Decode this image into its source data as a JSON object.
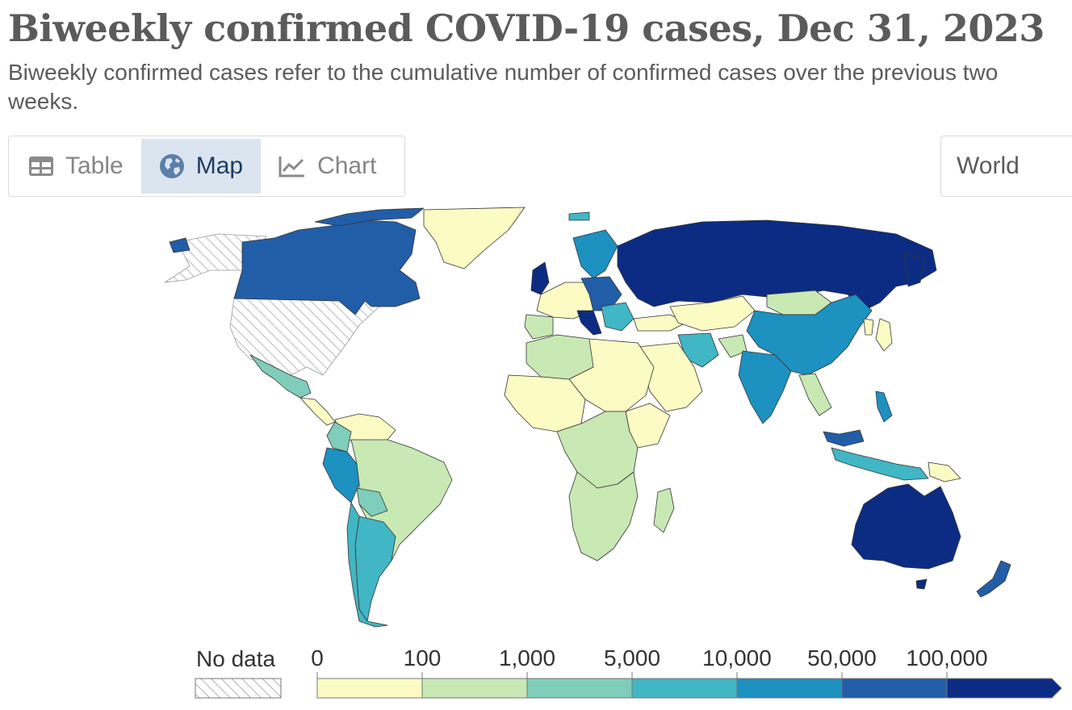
{
  "header": {
    "title": "Biweekly confirmed COVID-19 cases, Dec 31, 2023",
    "subtitle": "Biweekly confirmed cases refer to the cumulative number of confirmed cases over the previous two weeks."
  },
  "tabs": [
    {
      "label": "Table",
      "icon": "table-icon",
      "active": false
    },
    {
      "label": "Map",
      "icon": "globe-icon",
      "active": true
    },
    {
      "label": "Chart",
      "icon": "line-chart-icon",
      "active": false
    }
  ],
  "region_selector": {
    "value": "World"
  },
  "legend": {
    "no_data_label": "No data",
    "bins": [
      {
        "from": "0",
        "to": "100",
        "color": "#fdfbc4"
      },
      {
        "from": "100",
        "to": "1,000",
        "color": "#c8e8b4"
      },
      {
        "from": "1,000",
        "to": "5,000",
        "color": "#7fcdbb"
      },
      {
        "from": "5,000",
        "to": "10,000",
        "color": "#41b6c4"
      },
      {
        "from": "10,000",
        "to": "50,000",
        "color": "#1d91c0"
      },
      {
        "from": "50,000",
        "to": "100,000",
        "color": "#225ea8"
      },
      {
        "from": "100,000",
        "to": "",
        "color": "#0c2c84"
      }
    ],
    "tick_labels": [
      "0",
      "100",
      "1,000",
      "5,000",
      "10,000",
      "50,000",
      "100,000"
    ]
  },
  "colors": {
    "no_data_hatch": "#c8c8c8",
    "active_tab_bg": "#dbe5f0",
    "border": "#d9d9d9"
  }
}
